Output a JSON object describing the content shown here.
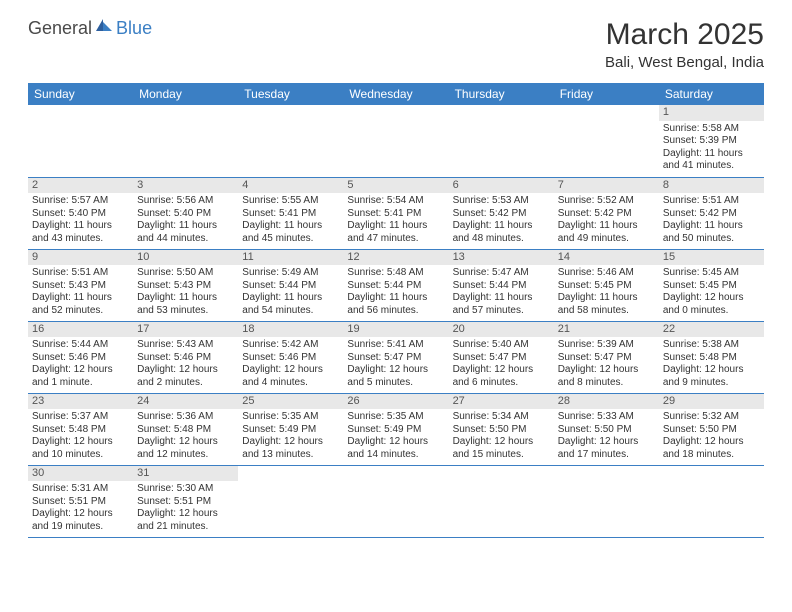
{
  "logo": {
    "text1": "General",
    "text2": "Blue"
  },
  "title": "March 2025",
  "location": "Bali, West Bengal, India",
  "colors": {
    "header_bg": "#3b7fc4",
    "header_fg": "#ffffff",
    "daynum_bg": "#e8e8e8",
    "border": "#3b7fc4",
    "text": "#333333",
    "logo_gray": "#4a4a4a",
    "logo_blue": "#3b7fc4",
    "page_bg": "#ffffff"
  },
  "typography": {
    "title_fontsize": 30,
    "location_fontsize": 15,
    "dayheader_fontsize": 12,
    "daynum_fontsize": 11,
    "cell_fontsize": 10,
    "font_family": "Arial"
  },
  "day_headers": [
    "Sunday",
    "Monday",
    "Tuesday",
    "Wednesday",
    "Thursday",
    "Friday",
    "Saturday"
  ],
  "weeks": [
    [
      {
        "day": "",
        "lines": []
      },
      {
        "day": "",
        "lines": []
      },
      {
        "day": "",
        "lines": []
      },
      {
        "day": "",
        "lines": []
      },
      {
        "day": "",
        "lines": []
      },
      {
        "day": "",
        "lines": []
      },
      {
        "day": "1",
        "lines": [
          "Sunrise: 5:58 AM",
          "Sunset: 5:39 PM",
          "Daylight: 11 hours and 41 minutes."
        ]
      }
    ],
    [
      {
        "day": "2",
        "lines": [
          "Sunrise: 5:57 AM",
          "Sunset: 5:40 PM",
          "Daylight: 11 hours and 43 minutes."
        ]
      },
      {
        "day": "3",
        "lines": [
          "Sunrise: 5:56 AM",
          "Sunset: 5:40 PM",
          "Daylight: 11 hours and 44 minutes."
        ]
      },
      {
        "day": "4",
        "lines": [
          "Sunrise: 5:55 AM",
          "Sunset: 5:41 PM",
          "Daylight: 11 hours and 45 minutes."
        ]
      },
      {
        "day": "5",
        "lines": [
          "Sunrise: 5:54 AM",
          "Sunset: 5:41 PM",
          "Daylight: 11 hours and 47 minutes."
        ]
      },
      {
        "day": "6",
        "lines": [
          "Sunrise: 5:53 AM",
          "Sunset: 5:42 PM",
          "Daylight: 11 hours and 48 minutes."
        ]
      },
      {
        "day": "7",
        "lines": [
          "Sunrise: 5:52 AM",
          "Sunset: 5:42 PM",
          "Daylight: 11 hours and 49 minutes."
        ]
      },
      {
        "day": "8",
        "lines": [
          "Sunrise: 5:51 AM",
          "Sunset: 5:42 PM",
          "Daylight: 11 hours and 50 minutes."
        ]
      }
    ],
    [
      {
        "day": "9",
        "lines": [
          "Sunrise: 5:51 AM",
          "Sunset: 5:43 PM",
          "Daylight: 11 hours and 52 minutes."
        ]
      },
      {
        "day": "10",
        "lines": [
          "Sunrise: 5:50 AM",
          "Sunset: 5:43 PM",
          "Daylight: 11 hours and 53 minutes."
        ]
      },
      {
        "day": "11",
        "lines": [
          "Sunrise: 5:49 AM",
          "Sunset: 5:44 PM",
          "Daylight: 11 hours and 54 minutes."
        ]
      },
      {
        "day": "12",
        "lines": [
          "Sunrise: 5:48 AM",
          "Sunset: 5:44 PM",
          "Daylight: 11 hours and 56 minutes."
        ]
      },
      {
        "day": "13",
        "lines": [
          "Sunrise: 5:47 AM",
          "Sunset: 5:44 PM",
          "Daylight: 11 hours and 57 minutes."
        ]
      },
      {
        "day": "14",
        "lines": [
          "Sunrise: 5:46 AM",
          "Sunset: 5:45 PM",
          "Daylight: 11 hours and 58 minutes."
        ]
      },
      {
        "day": "15",
        "lines": [
          "Sunrise: 5:45 AM",
          "Sunset: 5:45 PM",
          "Daylight: 12 hours and 0 minutes."
        ]
      }
    ],
    [
      {
        "day": "16",
        "lines": [
          "Sunrise: 5:44 AM",
          "Sunset: 5:46 PM",
          "Daylight: 12 hours and 1 minute."
        ]
      },
      {
        "day": "17",
        "lines": [
          "Sunrise: 5:43 AM",
          "Sunset: 5:46 PM",
          "Daylight: 12 hours and 2 minutes."
        ]
      },
      {
        "day": "18",
        "lines": [
          "Sunrise: 5:42 AM",
          "Sunset: 5:46 PM",
          "Daylight: 12 hours and 4 minutes."
        ]
      },
      {
        "day": "19",
        "lines": [
          "Sunrise: 5:41 AM",
          "Sunset: 5:47 PM",
          "Daylight: 12 hours and 5 minutes."
        ]
      },
      {
        "day": "20",
        "lines": [
          "Sunrise: 5:40 AM",
          "Sunset: 5:47 PM",
          "Daylight: 12 hours and 6 minutes."
        ]
      },
      {
        "day": "21",
        "lines": [
          "Sunrise: 5:39 AM",
          "Sunset: 5:47 PM",
          "Daylight: 12 hours and 8 minutes."
        ]
      },
      {
        "day": "22",
        "lines": [
          "Sunrise: 5:38 AM",
          "Sunset: 5:48 PM",
          "Daylight: 12 hours and 9 minutes."
        ]
      }
    ],
    [
      {
        "day": "23",
        "lines": [
          "Sunrise: 5:37 AM",
          "Sunset: 5:48 PM",
          "Daylight: 12 hours and 10 minutes."
        ]
      },
      {
        "day": "24",
        "lines": [
          "Sunrise: 5:36 AM",
          "Sunset: 5:48 PM",
          "Daylight: 12 hours and 12 minutes."
        ]
      },
      {
        "day": "25",
        "lines": [
          "Sunrise: 5:35 AM",
          "Sunset: 5:49 PM",
          "Daylight: 12 hours and 13 minutes."
        ]
      },
      {
        "day": "26",
        "lines": [
          "Sunrise: 5:35 AM",
          "Sunset: 5:49 PM",
          "Daylight: 12 hours and 14 minutes."
        ]
      },
      {
        "day": "27",
        "lines": [
          "Sunrise: 5:34 AM",
          "Sunset: 5:50 PM",
          "Daylight: 12 hours and 15 minutes."
        ]
      },
      {
        "day": "28",
        "lines": [
          "Sunrise: 5:33 AM",
          "Sunset: 5:50 PM",
          "Daylight: 12 hours and 17 minutes."
        ]
      },
      {
        "day": "29",
        "lines": [
          "Sunrise: 5:32 AM",
          "Sunset: 5:50 PM",
          "Daylight: 12 hours and 18 minutes."
        ]
      }
    ],
    [
      {
        "day": "30",
        "lines": [
          "Sunrise: 5:31 AM",
          "Sunset: 5:51 PM",
          "Daylight: 12 hours and 19 minutes."
        ]
      },
      {
        "day": "31",
        "lines": [
          "Sunrise: 5:30 AM",
          "Sunset: 5:51 PM",
          "Daylight: 12 hours and 21 minutes."
        ]
      },
      {
        "day": "",
        "lines": []
      },
      {
        "day": "",
        "lines": []
      },
      {
        "day": "",
        "lines": []
      },
      {
        "day": "",
        "lines": []
      },
      {
        "day": "",
        "lines": []
      }
    ]
  ]
}
